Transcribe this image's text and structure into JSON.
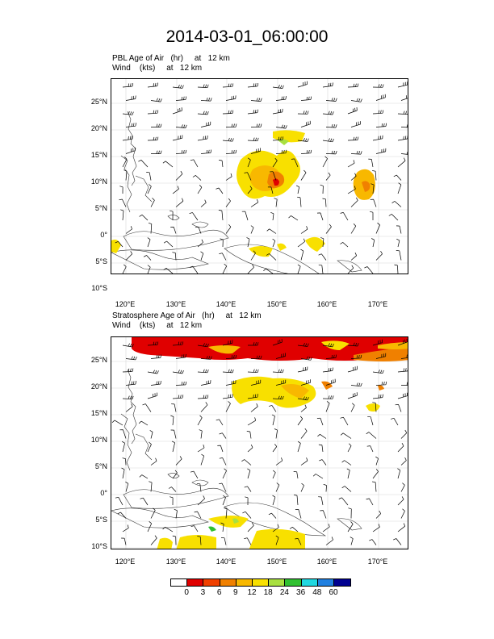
{
  "title": "2014-03-01_06:00:00",
  "panels": [
    {
      "name": "pbl",
      "label1": "PBL Age of Air   (hr)     at   12 km",
      "label2": "Wind    (kts)     at   12 km"
    },
    {
      "name": "strat",
      "label1": "Stratosphere Age of Air   (hr)     at   12 km",
      "label2": "Wind    (kts)     at   12 km"
    }
  ],
  "lat_ticks": [
    "25°N",
    "20°N",
    "15°N",
    "10°N",
    "5°N",
    "0°",
    "5°S",
    "10°S"
  ],
  "lon_ticks": [
    "120°E",
    "130°E",
    "140°E",
    "150°E",
    "160°E",
    "170°E"
  ],
  "colorbar": {
    "labels": [
      "0",
      "3",
      "6",
      "9",
      "12",
      "18",
      "24",
      "36",
      "48",
      "60"
    ],
    "colors": [
      "#ffffff",
      "#e00000",
      "#f04000",
      "#f08000",
      "#f8b800",
      "#f8e000",
      "#a8e040",
      "#30c030",
      "#20d8e0",
      "#2080e0",
      "#000090"
    ]
  }
}
